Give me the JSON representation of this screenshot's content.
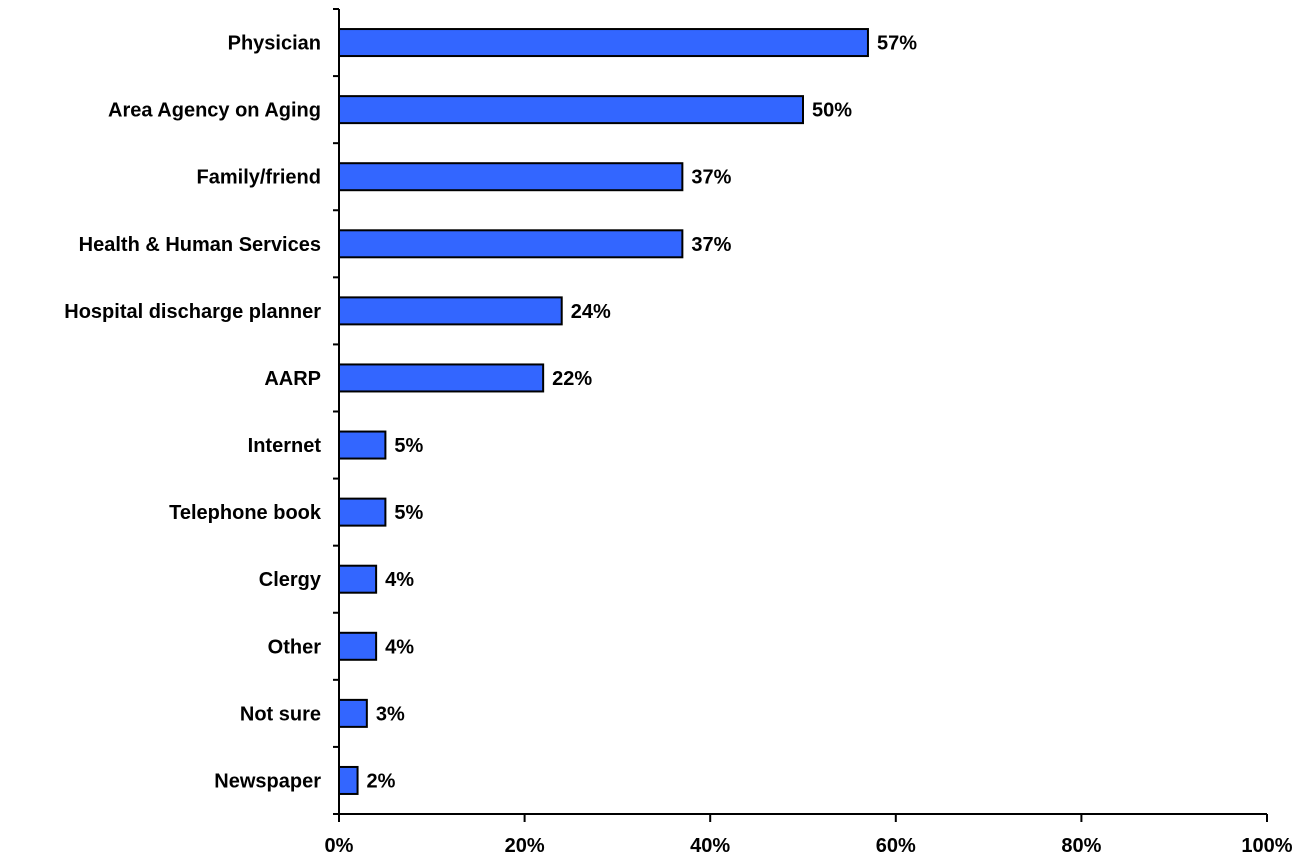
{
  "chart_data": {
    "type": "bar",
    "orientation": "horizontal",
    "categories": [
      "Physician",
      "Area Agency on Aging",
      "Family/friend",
      "Health & Human Services",
      "Hospital discharge planner",
      "AARP",
      "Internet",
      "Telephone book",
      "Clergy",
      "Other",
      "Not sure",
      "Newspaper"
    ],
    "values": [
      57,
      50,
      37,
      37,
      24,
      22,
      5,
      5,
      4,
      4,
      3,
      2
    ],
    "value_labels": [
      "57%",
      "50%",
      "37%",
      "37%",
      "24%",
      "22%",
      "5%",
      "5%",
      "4%",
      "4%",
      "3%",
      "2%"
    ],
    "xlim": [
      0,
      100
    ],
    "x_ticks": [
      0,
      20,
      40,
      60,
      80,
      100
    ],
    "x_tick_labels": [
      "0%",
      "20%",
      "40%",
      "60%",
      "80%",
      "100%"
    ],
    "title": "",
    "xlabel": "",
    "ylabel": "",
    "grid": false,
    "legend": "none",
    "bar_color": "#3366FF",
    "bar_edge_color": "#000000"
  }
}
